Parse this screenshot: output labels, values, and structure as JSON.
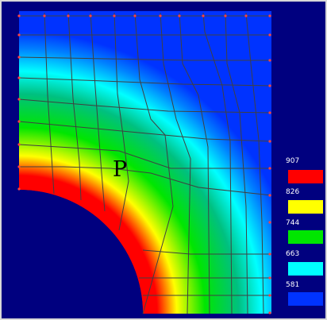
{
  "figure": {
    "point_label": "P",
    "background_color": "#00007f",
    "mesh_line_color": "#404040",
    "node_color": "#ff4040"
  },
  "legend": {
    "levels": [
      {
        "label": "907",
        "color": "#ff0000"
      },
      {
        "label": "826",
        "color": "#ffff00"
      },
      {
        "label": "744",
        "color": "#00e600"
      },
      {
        "label": "663",
        "color": "#00ffff"
      },
      {
        "label": "581",
        "color": "#0033ff"
      }
    ]
  }
}
